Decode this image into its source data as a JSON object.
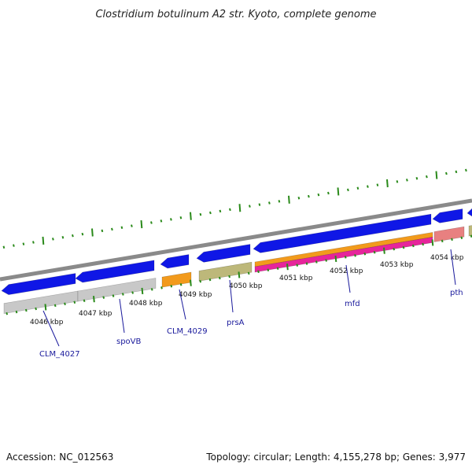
{
  "title": "Clostridium botulinum A2 str. Kyoto, complete genome",
  "footer": {
    "accession": "Accession: NC_012563",
    "summary": "Topology: circular; Length: 4,155,278 bp; Genes: 3,977"
  },
  "colors": {
    "background": "#ffffff",
    "backbone": "#8a8a8a",
    "cds_arrow": "#0f17e6",
    "gene_gray": "#c8c8c8",
    "gene_orange": "#f29a1c",
    "gene_olive": "#bdb87a",
    "gene_magenta": "#e6259b",
    "gene_salmon": "#e88080",
    "tick_green": "#2a8a1a",
    "label_blue": "#1a1a9c"
  },
  "scale": {
    "unit": "kbp",
    "tick_labels": [
      "4046 kbp",
      "4047 kbp",
      "4048 kbp",
      "4049 kbp",
      "4050 kbp",
      "4051 kbp",
      "4052 kbp",
      "4053 kbp",
      "4054 kbp"
    ]
  },
  "features": [
    {
      "name": "CLM_4027",
      "track": "cds",
      "color": "cds_arrow"
    },
    {
      "name": "CLM_4027",
      "track": "gene",
      "color": "gene_gray"
    },
    {
      "name": "spoVB",
      "track": "cds",
      "color": "cds_arrow"
    },
    {
      "name": "spoVB",
      "track": "gene",
      "color": "gene_gray"
    },
    {
      "name": "CLM_4029",
      "track": "cds",
      "color": "cds_arrow"
    },
    {
      "name": "CLM_4029",
      "track": "gene",
      "color": "gene_orange"
    },
    {
      "name": "prsA",
      "track": "cds",
      "color": "cds_arrow"
    },
    {
      "name": "prsA",
      "track": "gene",
      "color": "gene_olive"
    },
    {
      "name": "mfd",
      "track": "cds",
      "color": "cds_arrow"
    },
    {
      "name": "mfd",
      "track": "gene",
      "color": "gene_orange"
    },
    {
      "name": "mfd",
      "track": "gene",
      "color": "gene_magenta"
    },
    {
      "name": "pth",
      "track": "cds",
      "color": "cds_arrow"
    },
    {
      "name": "pth",
      "track": "gene",
      "color": "gene_salmon"
    }
  ],
  "gene_labels": [
    "CLM_4027",
    "spoVB",
    "CLM_4029",
    "prsA",
    "mfd",
    "pth"
  ]
}
